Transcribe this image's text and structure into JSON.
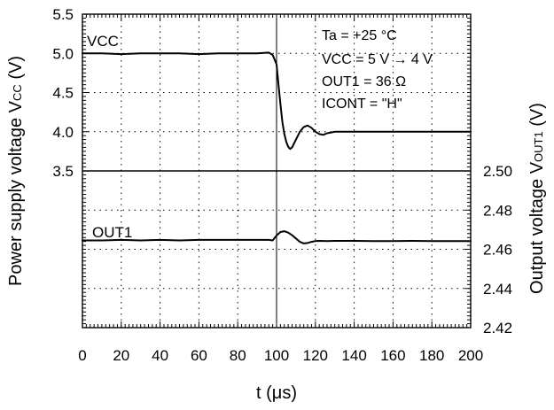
{
  "chart_data": {
    "type": "line",
    "x_unit": "µs",
    "xlabel": "t (μs)",
    "xlim": [
      0,
      200
    ],
    "x_ticks": [
      0,
      20,
      40,
      60,
      80,
      100,
      120,
      140,
      160,
      180,
      200
    ],
    "left_axis": {
      "label_main": "Power supply voltage V",
      "label_sub": "CC",
      "label_unit": " (V)",
      "ylim": [
        3.5,
        5.5
      ],
      "ticks": [
        "3.5",
        "4.0",
        "4.5",
        "5.0",
        "5.5"
      ]
    },
    "right_axis": {
      "label_main": "Output voltage V",
      "label_sub": "OUT1",
      "label_unit": " (V)",
      "ylim": [
        2.42,
        2.5
      ],
      "ticks": [
        "2.42",
        "2.44",
        "2.46",
        "2.48",
        "2.50"
      ]
    },
    "grid": true,
    "annotations": [
      "Ta = +25 °C",
      "VCC = 5 V → 4 V",
      "OUT1 = 36 Ω",
      "ICONT = \"H\""
    ],
    "series": [
      {
        "name": "VCC",
        "axis": "left",
        "x": [
          0,
          10,
          20,
          30,
          40,
          50,
          60,
          70,
          80,
          90,
          96,
          98,
          100,
          101,
          102,
          103,
          104,
          105,
          106,
          107,
          108,
          110,
          112,
          114,
          116,
          118,
          120,
          122,
          124,
          126,
          130,
          140,
          150,
          160,
          170,
          180,
          190,
          200
        ],
        "y": [
          5.0,
          5.0,
          4.99,
          5.0,
          5.0,
          5.0,
          4.99,
          5.0,
          5.0,
          5.0,
          5.01,
          4.98,
          4.86,
          4.6,
          4.35,
          4.12,
          3.97,
          3.87,
          3.81,
          3.78,
          3.8,
          3.9,
          4.0,
          4.06,
          4.08,
          4.05,
          4.0,
          3.97,
          3.96,
          3.98,
          4.0,
          4.0,
          4.0,
          4.0,
          4.0,
          4.0,
          4.0,
          4.0
        ]
      },
      {
        "name": "OUT1",
        "axis": "right",
        "x": [
          0,
          10,
          20,
          30,
          40,
          50,
          60,
          70,
          80,
          90,
          96,
          98,
          100,
          102,
          104,
          106,
          108,
          110,
          112,
          114,
          116,
          118,
          120,
          122,
          126,
          130,
          140,
          150,
          160,
          170,
          180,
          190,
          200
        ],
        "y": [
          2.4645,
          2.4645,
          2.4648,
          2.4645,
          2.4648,
          2.4645,
          2.4648,
          2.4648,
          2.4648,
          2.4648,
          2.4648,
          2.4645,
          2.467,
          2.4688,
          2.4692,
          2.4685,
          2.4672,
          2.4655,
          2.4638,
          2.463,
          2.4632,
          2.4638,
          2.4642,
          2.4643,
          2.4642,
          2.4643,
          2.4643,
          2.4642,
          2.4642,
          2.4643,
          2.4642,
          2.4642,
          2.4642
        ]
      }
    ]
  }
}
